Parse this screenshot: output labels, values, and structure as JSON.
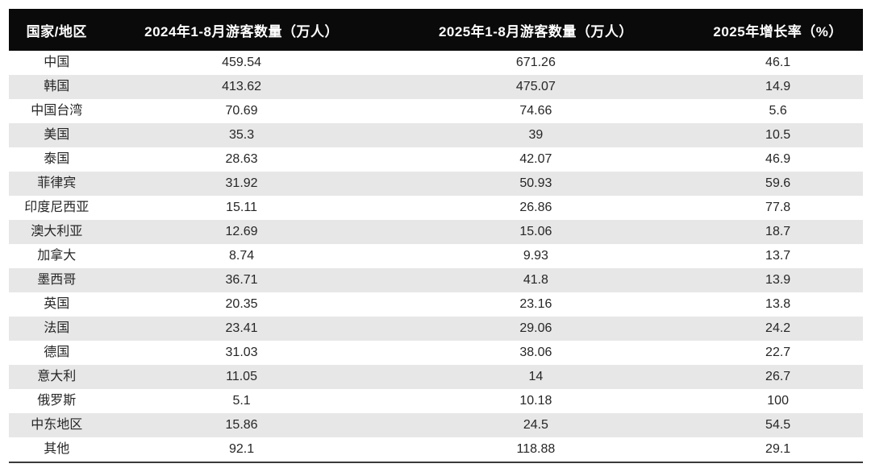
{
  "chart_data": {
    "type": "table",
    "columns": [
      "国家/地区",
      "2024年1-8月游客数量（万人）",
      "2025年1-8月游客数量（万人）",
      "2025年增长率（%）"
    ],
    "rows": [
      [
        "中国",
        "459.54",
        "671.26",
        "46.1"
      ],
      [
        "韩国",
        "413.62",
        "475.07",
        "14.9"
      ],
      [
        "中国台湾",
        "70.69",
        "74.66",
        "5.6"
      ],
      [
        "美国",
        "35.3",
        "39",
        "10.5"
      ],
      [
        "泰国",
        "28.63",
        "42.07",
        "46.9"
      ],
      [
        "菲律宾",
        "31.92",
        "50.93",
        "59.6"
      ],
      [
        "印度尼西亚",
        "15.11",
        "26.86",
        "77.8"
      ],
      [
        "澳大利亚",
        "12.69",
        "15.06",
        "18.7"
      ],
      [
        "加拿大",
        "8.74",
        "9.93",
        "13.7"
      ],
      [
        "墨西哥",
        "36.71",
        "41.8",
        "13.9"
      ],
      [
        "英国",
        "20.35",
        "23.16",
        "13.8"
      ],
      [
        "法国",
        "23.41",
        "29.06",
        "24.2"
      ],
      [
        "德国",
        "31.03",
        "38.06",
        "22.7"
      ],
      [
        "意大利",
        "11.05",
        "14",
        "26.7"
      ],
      [
        "俄罗斯",
        "5.1",
        "10.18",
        "100"
      ],
      [
        "中东地区",
        "15.86",
        "24.5",
        "54.5"
      ],
      [
        "其他",
        "92.1",
        "118.88",
        "29.1"
      ]
    ],
    "layout": {
      "striped": true,
      "stripe_pattern": "even-rows-gray",
      "header_style": "black-bar-white-text",
      "bottom_rule": true
    }
  },
  "colors": {
    "header_bg": "#0a0a0a",
    "header_text": "#ffffff",
    "row_stripe": "#e7e7e7",
    "body_text": "#262626",
    "bottom_border": "#3a3a3a",
    "page_bg": "#ffffff"
  }
}
